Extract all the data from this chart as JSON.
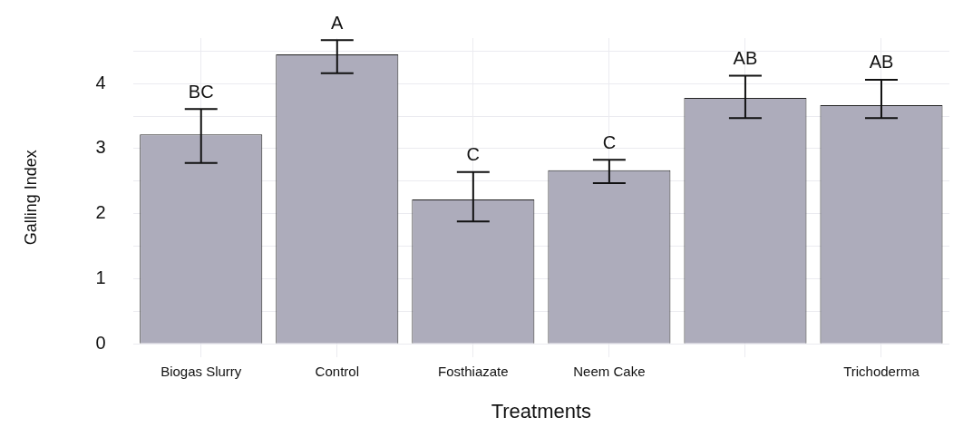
{
  "chart_data": {
    "type": "bar",
    "xlabel": "Treatments",
    "ylabel": "Galling Index",
    "categories": [
      "Biogas Slurry",
      "Control",
      "Fosthiazate",
      "Neem Cake",
      null,
      "Trichoderma"
    ],
    "values": [
      3.22,
      4.45,
      2.22,
      2.67,
      3.78,
      3.67
    ],
    "errors": [
      [
        2.78,
        3.61
      ],
      [
        4.16,
        4.67
      ],
      [
        1.88,
        2.64
      ],
      [
        2.47,
        2.83
      ],
      [
        3.47,
        4.12
      ],
      [
        3.47,
        4.06
      ]
    ],
    "color": "#adacbb",
    "ylim": [
      -0.2,
      4.7
    ],
    "yticks": [
      0,
      {
        "value": 0.5,
        "label": null
      },
      1,
      {
        "value": 1.5,
        "label": null
      },
      2,
      {
        "value": 2.5,
        "label": null
      },
      3,
      {
        "value": 3.5,
        "label": null
      },
      4,
      {
        "value": 4.5,
        "label": null
      }
    ],
    "grid": true,
    "legend": false,
    "annotations": [
      {
        "text": "BC",
        "x": "Biogas Slurry",
        "y": 3.61
      },
      {
        "text": "A",
        "x": "Control",
        "y": 4.67
      },
      {
        "text": "C",
        "x": "Fosthiazate",
        "y": 2.64
      },
      {
        "text": "C",
        "x": "Neem Cake",
        "y": 2.83
      },
      {
        "text": "AB",
        "y": 4.12
      },
      {
        "text": "AB",
        "x": "Trichoderma",
        "y": 4.06
      }
    ]
  }
}
